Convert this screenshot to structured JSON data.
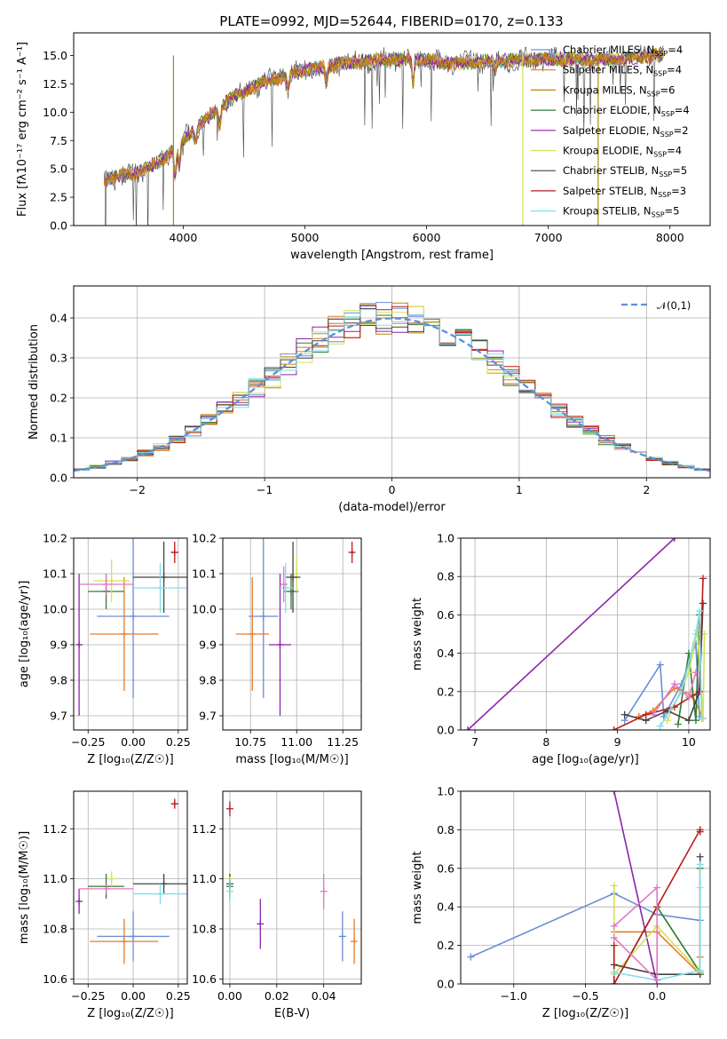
{
  "title": "PLATE=0992, MJD=52644, FIBERID=0170, z=0.133",
  "colors": {
    "chabrier_miles": "#6a8ed6",
    "salpeter_miles": "#e57c2a",
    "kroupa_miles": "#b8860b",
    "chabrier_elodie": "#2e7d32",
    "salpeter_elodie": "#8e24aa",
    "kroupa_elodie": "#d4e157",
    "chabrier_stelib": "#444444",
    "salpeter_stelib": "#b71c1c",
    "kroupa_stelib": "#80deea",
    "pink": "#e377c2",
    "normal": "#5f8fd6",
    "grid": "#b0b0b0"
  },
  "chart_data": [
    {
      "id": "spectrum",
      "type": "line",
      "title": "PLATE=0992, MJD=52644, FIBERID=0170, z=0.133",
      "xlabel": "wavelength [Angstrom, rest frame]",
      "ylabel": "Flux [fλ10⁻¹⁷ erg cm⁻² s⁻¹ A⁻¹]",
      "xlim": [
        3100,
        8330
      ],
      "ylim": [
        0,
        17
      ],
      "xticks": [
        "4000",
        "5000",
        "6000",
        "7000",
        "8000"
      ],
      "yticks": [
        "0.0",
        "2.5",
        "5.0",
        "7.5",
        "10.0",
        "12.5",
        "15.0"
      ],
      "grid": false,
      "legend_position": "right",
      "continuum_x": [
        3350,
        3600,
        3800,
        4000,
        4200,
        4400,
        4700,
        5000,
        5300,
        5600,
        5900,
        6200,
        6500,
        6800,
        7100,
        7400,
        7700,
        7950
      ],
      "continuum_y": [
        4.0,
        4.6,
        5.5,
        7.6,
        9.5,
        11.3,
        12.8,
        13.7,
        14.3,
        14.6,
        14.7,
        14.3,
        14.5,
        14.6,
        14.7,
        14.6,
        14.8,
        15.1
      ],
      "series": [
        {
          "name": "Chabrier MILES, N_SSP=4"
        },
        {
          "name": "Salpeter MILES, N_SSP=4"
        },
        {
          "name": "Kroupa MILES, N_SSP=6"
        },
        {
          "name": "Chabrier ELODIE, N_SSP=4"
        },
        {
          "name": "Salpeter ELODIE, N_SSP=2"
        },
        {
          "name": "Kroupa ELODIE, N_SSP=4"
        },
        {
          "name": "Chabrier STELIB, N_SSP=5"
        },
        {
          "name": "Salpeter STELIB, N_SSP=3"
        },
        {
          "name": "Kroupa STELIB, N_SSP=5"
        }
      ]
    },
    {
      "id": "residuals",
      "type": "line",
      "xlabel": "(data-model)/error",
      "ylabel": "Normed distribution",
      "xlim": [
        -2.5,
        2.5
      ],
      "ylim": [
        0,
        0.48
      ],
      "xticks": [
        "−2",
        "−1",
        "0",
        "1",
        "2"
      ],
      "yticks": [
        "0.0",
        "0.1",
        "0.2",
        "0.3",
        "0.4"
      ],
      "grid": true,
      "legend_position": "top-right",
      "legend": "𝒩(0,1)",
      "bins": 40
    },
    {
      "id": "age_vs_Z",
      "type": "scatter",
      "xlabel": "Z [log₁₀(Z/Z☉)]",
      "ylabel": "age  [log₁₀(age/yr)]",
      "xlim": [
        -0.33,
        0.3
      ],
      "ylim": [
        9.66,
        10.2
      ],
      "xticks": [
        "−0.25",
        "0.00",
        "0.25"
      ],
      "yticks": [
        "9.7",
        "9.8",
        "9.9",
        "10.0",
        "10.1",
        "10.2"
      ],
      "grid": true,
      "points": [
        {
          "c": "chabrier_miles",
          "x": 0.0,
          "y": 9.98,
          "xerr": 0.2,
          "yerr": 0.23
        },
        {
          "c": "salpeter_miles",
          "x": -0.05,
          "y": 9.93,
          "xerr": 0.19,
          "yerr": 0.16
        },
        {
          "c": "chabrier_elodie",
          "x": -0.15,
          "y": 10.05,
          "xerr": 0.1,
          "yerr": 0.05
        },
        {
          "c": "salpeter_elodie",
          "x": -0.3,
          "y": 9.9,
          "xerr": 0.01,
          "yerr": 0.2
        },
        {
          "c": "kroupa_elodie",
          "x": -0.12,
          "y": 10.08,
          "xerr": 0.1,
          "yerr": 0.06
        },
        {
          "c": "chabrier_stelib",
          "x": 0.17,
          "y": 10.09,
          "xerr": 0.17,
          "yerr": 0.1
        },
        {
          "c": "salpeter_stelib",
          "x": 0.23,
          "y": 10.16,
          "xerr": 0.02,
          "yerr": 0.03
        },
        {
          "c": "kroupa_stelib",
          "x": 0.15,
          "y": 10.06,
          "xerr": 0.15,
          "yerr": 0.07
        },
        {
          "c": "pink",
          "x": -0.15,
          "y": 10.07,
          "xerr": 0.15,
          "yerr": 0.03
        }
      ]
    },
    {
      "id": "age_vs_mass",
      "type": "scatter",
      "xlabel": "mass [log₁₀(M/M☉)]",
      "ylabel": "",
      "xlim": [
        10.6,
        11.35
      ],
      "ylim": [
        9.66,
        10.2
      ],
      "xticks": [
        "10.75",
        "11.00",
        "11.25"
      ],
      "yticks": [
        "9.7",
        "9.8",
        "9.9",
        "10.0",
        "10.1",
        "10.2"
      ],
      "grid": true,
      "points": [
        {
          "c": "chabrier_miles",
          "x": 10.82,
          "y": 9.98,
          "xerr": 0.08,
          "yerr": 0.23
        },
        {
          "c": "salpeter_miles",
          "x": 10.76,
          "y": 9.93,
          "xerr": 0.09,
          "yerr": 0.16
        },
        {
          "c": "chabrier_elodie",
          "x": 10.97,
          "y": 10.05,
          "xerr": 0.04,
          "yerr": 0.05
        },
        {
          "c": "salpeter_elodie",
          "x": 10.91,
          "y": 9.9,
          "xerr": 0.06,
          "yerr": 0.2
        },
        {
          "c": "kroupa_elodie",
          "x": 11.0,
          "y": 10.1,
          "xerr": 0.01,
          "yerr": 0.05
        },
        {
          "c": "chabrier_stelib",
          "x": 10.98,
          "y": 10.09,
          "xerr": 0.04,
          "yerr": 0.1
        },
        {
          "c": "salpeter_stelib",
          "x": 11.3,
          "y": 10.16,
          "xerr": 0.01,
          "yerr": 0.03
        },
        {
          "c": "kroupa_stelib",
          "x": 10.94,
          "y": 10.06,
          "xerr": 0.04,
          "yerr": 0.07
        },
        {
          "c": "pink",
          "x": 10.93,
          "y": 10.07,
          "xerr": 0.02,
          "yerr": 0.05
        }
      ]
    },
    {
      "id": "weight_vs_age",
      "type": "line",
      "xlabel": "age  [log₁₀(age/yr)]",
      "ylabel": "mass weight",
      "xlim": [
        6.8,
        10.3
      ],
      "ylim": [
        0,
        1
      ],
      "xticks": [
        "7",
        "8",
        "9",
        "10"
      ],
      "yticks": [
        "0.0",
        "0.2",
        "0.4",
        "0.6",
        "0.8",
        "1.0"
      ],
      "grid": true,
      "series": [
        {
          "c": "salpeter_elodie",
          "x": [
            6.9,
            9.8
          ],
          "y": [
            0.0,
            1.0
          ]
        },
        {
          "c": "chabrier_miles",
          "x": [
            9.1,
            9.6,
            9.65,
            9.9,
            10.1,
            10.15
          ],
          "y": [
            0.05,
            0.34,
            0.07,
            0.24,
            0.45,
            0.07
          ]
        },
        {
          "c": "salpeter_miles",
          "x": [
            9.3,
            9.5,
            9.8,
            10.05,
            10.2
          ],
          "y": [
            0.07,
            0.1,
            0.22,
            0.18,
            0.06
          ]
        },
        {
          "c": "chabrier_elodie",
          "x": [
            9.85,
            10.0,
            10.1,
            10.15
          ],
          "y": [
            0.03,
            0.4,
            0.05,
            0.6
          ]
        },
        {
          "c": "kroupa_elodie",
          "x": [
            9.7,
            10.0,
            10.12,
            10.2,
            10.22
          ],
          "y": [
            0.05,
            0.3,
            0.52,
            0.06,
            0.5
          ]
        },
        {
          "c": "chabrier_stelib",
          "x": [
            9.1,
            9.4,
            9.7,
            10.0,
            10.15,
            10.2
          ],
          "y": [
            0.08,
            0.05,
            0.1,
            0.05,
            0.2,
            0.66
          ]
        },
        {
          "c": "salpeter_stelib",
          "x": [
            8.95,
            9.4,
            9.8,
            10.15,
            10.2
          ],
          "y": [
            0.0,
            0.08,
            0.12,
            0.2,
            0.79
          ]
        },
        {
          "c": "kroupa_stelib",
          "x": [
            9.6,
            9.9,
            10.1,
            10.15,
            10.18
          ],
          "y": [
            0.02,
            0.2,
            0.5,
            0.62,
            0.06
          ]
        },
        {
          "c": "pink",
          "x": [
            9.5,
            9.8,
            10.0,
            10.1
          ],
          "y": [
            0.08,
            0.24,
            0.17,
            0.3
          ]
        }
      ]
    },
    {
      "id": "mass_vs_Z",
      "type": "scatter",
      "xlabel": "Z [log₁₀(Z/Z☉)]",
      "ylabel": "mass [log₁₀(M/M☉)]",
      "xlim": [
        -0.33,
        0.3
      ],
      "ylim": [
        10.58,
        11.35
      ],
      "xticks": [
        "−0.25",
        "0.00",
        "0.25"
      ],
      "yticks": [
        "10.6",
        "10.8",
        "11.0",
        "11.2"
      ],
      "grid": true,
      "points": [
        {
          "c": "chabrier_miles",
          "x": -0.0,
          "y": 10.77,
          "xerr": 0.2,
          "yerr": 0.1
        },
        {
          "c": "salpeter_miles",
          "x": -0.05,
          "y": 10.75,
          "xerr": 0.19,
          "yerr": 0.09
        },
        {
          "c": "chabrier_elodie",
          "x": -0.15,
          "y": 10.97,
          "xerr": 0.1,
          "yerr": 0.05
        },
        {
          "c": "salpeter_elodie",
          "x": -0.3,
          "y": 10.91,
          "xerr": 0.01,
          "yerr": 0.05
        },
        {
          "c": "kroupa_elodie",
          "x": -0.12,
          "y": 11.0,
          "xerr": 0.01,
          "yerr": 0.03
        },
        {
          "c": "chabrier_stelib",
          "x": 0.17,
          "y": 10.98,
          "xerr": 0.17,
          "yerr": 0.04
        },
        {
          "c": "salpeter_stelib",
          "x": 0.23,
          "y": 11.3,
          "xerr": 0.02,
          "yerr": 0.02
        },
        {
          "c": "kroupa_stelib",
          "x": 0.15,
          "y": 10.94,
          "xerr": 0.15,
          "yerr": 0.04
        },
        {
          "c": "pink",
          "x": -0.15,
          "y": 10.96,
          "xerr": 0.15,
          "yerr": 0.02
        }
      ]
    },
    {
      "id": "mass_vs_ebv",
      "type": "scatter",
      "xlabel": "E(B-V)",
      "ylabel": "",
      "xlim": [
        -0.003,
        0.056
      ],
      "ylim": [
        10.58,
        11.35
      ],
      "xticks": [
        "0.00",
        "0.02",
        "0.04"
      ],
      "yticks": [
        "10.6",
        "10.8",
        "11.0",
        "11.2"
      ],
      "grid": true,
      "points": [
        {
          "c": "chabrier_miles",
          "x": 0.048,
          "y": 10.77,
          "yerr": 0.1
        },
        {
          "c": "salpeter_miles",
          "x": 0.053,
          "y": 10.75,
          "yerr": 0.09
        },
        {
          "c": "chabrier_elodie",
          "x": 0.0,
          "y": 10.97,
          "yerr": 0.05
        },
        {
          "c": "salpeter_elodie",
          "x": 0.013,
          "y": 10.82,
          "yerr": 0.1
        },
        {
          "c": "kroupa_elodie",
          "x": 0.0,
          "y": 11.0,
          "yerr": 0.03
        },
        {
          "c": "chabrier_stelib",
          "x": 0.0,
          "y": 10.98,
          "yerr": 0.04
        },
        {
          "c": "salpeter_stelib",
          "x": 0.0,
          "y": 11.28,
          "yerr": 0.03
        },
        {
          "c": "kroupa_stelib",
          "x": 0.0,
          "y": 10.95,
          "yerr": 0.06
        },
        {
          "c": "pink",
          "x": 0.04,
          "y": 10.95,
          "yerr": 0.07
        }
      ]
    },
    {
      "id": "weight_vs_Z",
      "type": "line",
      "xlabel": "Z [log₁₀(Z/Z☉)]",
      "ylabel": "mass weight",
      "xlim": [
        -1.37,
        0.37
      ],
      "ylim": [
        0,
        1
      ],
      "xticks": [
        "−1.0",
        "−0.5",
        "0.0"
      ],
      "yticks": [
        "0.0",
        "0.2",
        "0.4",
        "0.6",
        "0.8",
        "1.0"
      ],
      "grid": true,
      "series": [
        {
          "c": "chabrier_miles",
          "x": [
            -1.3,
            -0.3,
            0.0,
            0.3,
            0.3
          ],
          "y": [
            0.14,
            0.47,
            0.36,
            0.33,
            0.06
          ]
        },
        {
          "c": "salpeter_miles",
          "x": [
            -0.3,
            -0.0,
            0.3,
            0.3
          ],
          "y": [
            0.27,
            0.27,
            0.05,
            0.14
          ]
        },
        {
          "c": "salpeter_elodie",
          "x": [
            -0.3,
            0.0
          ],
          "y": [
            1.0,
            0.0
          ]
        },
        {
          "c": "chabrier_elodie",
          "x": [
            -0.3,
            0.0,
            0.3,
            0.3
          ],
          "y": [
            0.0,
            0.4,
            0.06,
            0.6
          ]
        },
        {
          "c": "kroupa_elodie",
          "x": [
            -0.3,
            -0.3,
            0.0,
            0.3,
            0.3
          ],
          "y": [
            0.51,
            0.05,
            0.3,
            0.06,
            0.5
          ]
        },
        {
          "c": "chabrier_stelib",
          "x": [
            -0.3,
            0.0,
            0.3,
            0.3
          ],
          "y": [
            0.1,
            0.05,
            0.05,
            0.66
          ]
        },
        {
          "c": "salpeter_stelib",
          "x": [
            -0.3,
            -0.3,
            0.0,
            0.3,
            0.3
          ],
          "y": [
            0.2,
            0.0,
            0.4,
            0.8,
            0.79
          ]
        },
        {
          "c": "kroupa_stelib",
          "x": [
            -0.3,
            0.0,
            0.3,
            0.3
          ],
          "y": [
            0.06,
            0.02,
            0.07,
            0.62
          ]
        },
        {
          "c": "pink",
          "x": [
            -0.3,
            -0.0,
            0.0,
            -0.3
          ],
          "y": [
            0.3,
            0.5,
            0.02,
            0.24
          ]
        }
      ]
    }
  ]
}
